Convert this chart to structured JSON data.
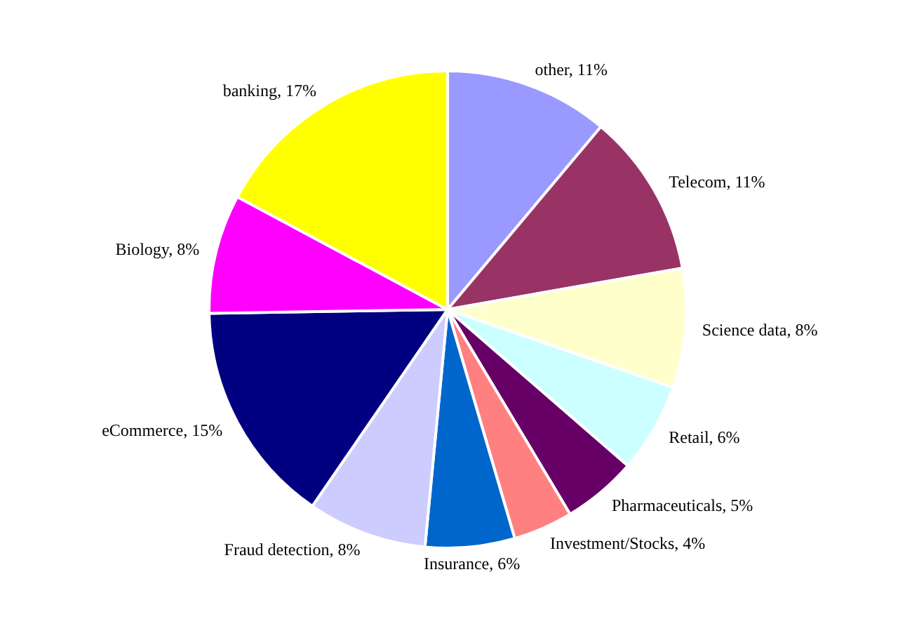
{
  "chart_data": {
    "type": "pie",
    "categories": [
      "other",
      "Telecom",
      "Science data",
      "Retail",
      "Pharmaceuticals",
      "Investment/Stocks",
      "Insurance",
      "Fraud detection",
      "eCommerce",
      "Biology",
      "banking"
    ],
    "values": [
      11,
      11,
      8,
      6,
      5,
      4,
      6,
      8,
      15,
      8,
      17
    ],
    "value_labels": [
      "11%",
      "11%",
      "8%",
      "6%",
      "5%",
      "4%",
      "6%",
      "8%",
      "15%",
      "8%",
      "17%"
    ],
    "colors": [
      "#9999ff",
      "#993366",
      "#ffffcc",
      "#ccffff",
      "#660066",
      "#ff8080",
      "#0066cc",
      "#ccccff",
      "#000080",
      "#ff00ff",
      "#ffff00"
    ],
    "legend": false
  }
}
